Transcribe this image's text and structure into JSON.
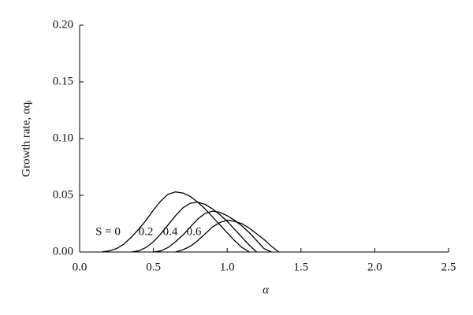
{
  "chart_data": {
    "type": "line",
    "xlabel": "α",
    "ylabel": "Growth rate, αqᵢ",
    "x": [
      0.15,
      0.2,
      0.25,
      0.3,
      0.35,
      0.4,
      0.45,
      0.5,
      0.55,
      0.6,
      0.65,
      0.7,
      0.75,
      0.8,
      0.85,
      0.9,
      0.95,
      1.0,
      1.05,
      1.1,
      1.15,
      1.2,
      1.25,
      1.3,
      1.35
    ],
    "series": [
      {
        "color": "#000000",
        "values": [
          0,
          0.001,
          0.003,
          0.007,
          0.013,
          0.02,
          0.028,
          0.037,
          0.045,
          0.051,
          0.053,
          0.052,
          0.049,
          0.044,
          0.038,
          0.031,
          0.024,
          0.017,
          0.01,
          0.004,
          0,
          null,
          null,
          null,
          null
        ]
      },
      {
        "color": "#000000",
        "values": [
          null,
          null,
          null,
          null,
          0,
          0.001,
          0.004,
          0.009,
          0.016,
          0.024,
          0.032,
          0.039,
          0.043,
          0.044,
          0.042,
          0.038,
          0.033,
          0.027,
          0.02,
          0.013,
          0.006,
          0,
          null,
          null,
          null
        ]
      },
      {
        "color": "#000000",
        "values": [
          null,
          null,
          null,
          null,
          null,
          null,
          null,
          0,
          0.001,
          0.004,
          0.009,
          0.015,
          0.022,
          0.029,
          0.034,
          0.036,
          0.035,
          0.032,
          0.028,
          0.023,
          0.017,
          0.01,
          0.003,
          0,
          null
        ]
      },
      {
        "color": "#000000",
        "values": [
          null,
          null,
          null,
          null,
          null,
          null,
          null,
          null,
          null,
          null,
          0,
          0.002,
          0.005,
          0.01,
          0.016,
          0.022,
          0.026,
          0.028,
          0.027,
          0.025,
          0.021,
          0.016,
          0.011,
          0.005,
          0
        ]
      }
    ],
    "annotations": [
      "S = 0",
      "0.2",
      "0.4",
      "0.6"
    ],
    "xlim": [
      0,
      2.5
    ],
    "xticks": [
      {
        "value": 0,
        "label": "0.0"
      },
      0.5,
      {
        "value": 1,
        "label": "1.0"
      },
      1.5,
      {
        "value": 2,
        "label": "2.0"
      },
      2.5
    ],
    "ylim": [
      0,
      0.2
    ],
    "yticks": [
      {
        "value": 0,
        "label": "0.00"
      },
      {
        "value": 0.05,
        "label": "0.05"
      },
      {
        "value": 0.1,
        "label": "0.10"
      },
      {
        "value": 0.15,
        "label": "0.15"
      },
      {
        "value": 0.2,
        "label": "0.20"
      }
    ],
    "grid": false
  }
}
